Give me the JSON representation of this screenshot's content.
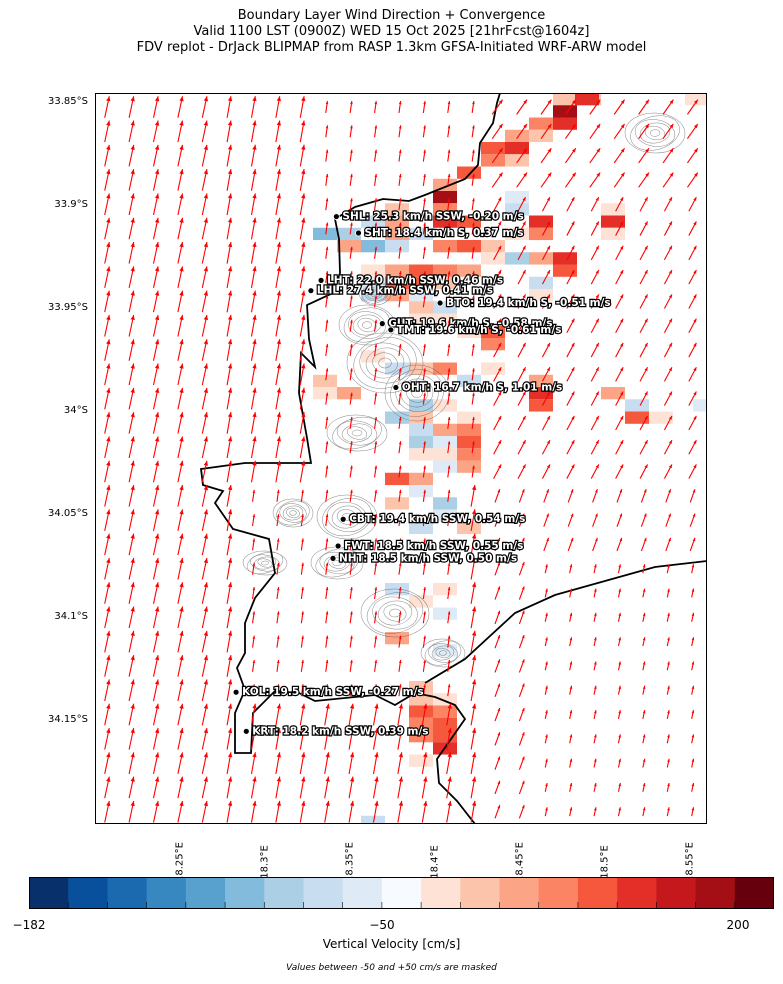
{
  "title": {
    "line1": "Boundary Layer Wind Direction + Convergence",
    "line2": "Valid 1100 LST (0900Z) WED 15 Oct 2025 [21hrFcst@1604z]",
    "line3": "FDV replot - DrJack BLIPMAP from RASP 1.3km GFSA-Initiated WRF-ARW model"
  },
  "map": {
    "lon_range": [
      18.2,
      18.56
    ],
    "lat_range": [
      -34.2,
      -33.845
    ],
    "lat_ticks": [
      {
        "value": -33.85,
        "label": "33.85°S"
      },
      {
        "value": -33.9,
        "label": "33.9°S"
      },
      {
        "value": -33.95,
        "label": "33.95°S"
      },
      {
        "value": -34.0,
        "label": "34°S"
      },
      {
        "value": -34.05,
        "label": "34.05°S"
      },
      {
        "value": -34.1,
        "label": "34.1°S"
      },
      {
        "value": -34.15,
        "label": "34.15°S"
      }
    ],
    "lon_ticks": [
      {
        "value": 18.25,
        "label": "18.25°E"
      },
      {
        "value": 18.3,
        "label": "18.3°E"
      },
      {
        "value": 18.35,
        "label": "18.35°E"
      },
      {
        "value": 18.4,
        "label": "18.4°E"
      },
      {
        "value": 18.45,
        "label": "18.45°E"
      },
      {
        "value": 18.5,
        "label": "18.5°E"
      },
      {
        "value": 18.55,
        "label": "18.55°E"
      }
    ],
    "wind_arrow_color": "#ff0000",
    "coastline_color": "#000000",
    "stations": [
      {
        "code": "SHL",
        "lon": 18.342,
        "lat": -33.905,
        "label": "SHL: 25.3 km/h SSW, -0.20 m/s"
      },
      {
        "code": "SHT",
        "lon": 18.355,
        "lat": -33.913,
        "label": "SHT: 18.4 km/h S, 0.37 m/s"
      },
      {
        "code": "LHT",
        "lon": 18.333,
        "lat": -33.936,
        "label": "LHT: 22.0 km/h SSW, 0.46 m/s"
      },
      {
        "code": "LHL",
        "lon": 18.327,
        "lat": -33.941,
        "label": "LHL: 27.4 km/h SSW, 0.41 m/s"
      },
      {
        "code": "BTO",
        "lon": 18.403,
        "lat": -33.947,
        "label": "BTO: 19.4 km/h S, -0.51 m/s"
      },
      {
        "code": "GUT",
        "lon": 18.369,
        "lat": -33.957,
        "label": "GUT: 19.6 km/h S, -0.58 m/s"
      },
      {
        "code": "TMT",
        "lon": 18.374,
        "lat": -33.96,
        "label": "TMT: 19.6 km/h S, -0.61 m/s"
      },
      {
        "code": "OHT",
        "lon": 18.377,
        "lat": -33.988,
        "label": "OHT: 16.7 km/h S, 1.01 m/s"
      },
      {
        "code": "CBT",
        "lon": 18.346,
        "lat": -34.052,
        "label": "CBT: 19.4 km/h SSW, 0.54 m/s"
      },
      {
        "code": "FWT",
        "lon": 18.343,
        "lat": -34.065,
        "label": "FWT: 18.5 km/h SSW, 0.55 m/s"
      },
      {
        "code": "NHT",
        "lon": 18.34,
        "lat": -34.071,
        "label": "NHT: 18.5 km/h SSW, 0.50 m/s"
      },
      {
        "code": "KOL",
        "lon": 18.283,
        "lat": -34.136,
        "label": "KOL: 19.5 km/h SSW, -0.27 m/s"
      },
      {
        "code": "KRT",
        "lon": 18.289,
        "lat": -34.155,
        "label": "KRT: 18.2 km/h SSW, 0.39 m/s"
      }
    ]
  },
  "colorbar": {
    "min_label": "−182",
    "mid_label": "−50",
    "max_label": "200",
    "min": -182,
    "max": 200,
    "label": "Vertical Velocity [cm/s]",
    "note": "Values between -50 and +50 cm/s are masked",
    "colors": [
      "#08306b",
      "#08509b",
      "#1b69af",
      "#3787c0",
      "#58a1cf",
      "#82bbdb",
      "#abcfe5",
      "#c9ddf0",
      "#deebf7",
      "#f7fbff",
      "#fee2d5",
      "#fcc5ab",
      "#fca486",
      "#fb8464",
      "#f6583e",
      "#e32f27",
      "#c5181c",
      "#a40f15",
      "#67000d"
    ]
  }
}
